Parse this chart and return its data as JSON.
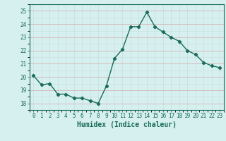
{
  "xlabel": "Humidex (Indice chaleur)",
  "ylabel": "",
  "x": [
    0,
    1,
    2,
    3,
    4,
    5,
    6,
    7,
    8,
    9,
    10,
    11,
    12,
    13,
    14,
    15,
    16,
    17,
    18,
    19,
    20,
    21,
    22,
    23
  ],
  "y": [
    20.1,
    19.4,
    19.5,
    18.7,
    18.7,
    18.4,
    18.4,
    18.2,
    18.0,
    19.3,
    21.4,
    22.1,
    23.8,
    23.8,
    24.9,
    23.8,
    23.4,
    23.0,
    22.7,
    22.0,
    21.7,
    21.1,
    20.85,
    20.7
  ],
  "line_color": "#1a6b5a",
  "marker": "D",
  "marker_size": 2.2,
  "line_width": 1.0,
  "ylim": [
    17.5,
    25.5
  ],
  "yticks": [
    18,
    19,
    20,
    21,
    22,
    23,
    24,
    25
  ],
  "xticks": [
    0,
    1,
    2,
    3,
    4,
    5,
    6,
    7,
    8,
    9,
    10,
    11,
    12,
    13,
    14,
    15,
    16,
    17,
    18,
    19,
    20,
    21,
    22,
    23
  ],
  "bg_color": "#d6f0ef",
  "grid_color_major": "#c8a8a8",
  "grid_color_minor": "#c8dede",
  "title_fontsize": 7,
  "tick_fontsize": 5.5,
  "xlabel_fontsize": 7
}
